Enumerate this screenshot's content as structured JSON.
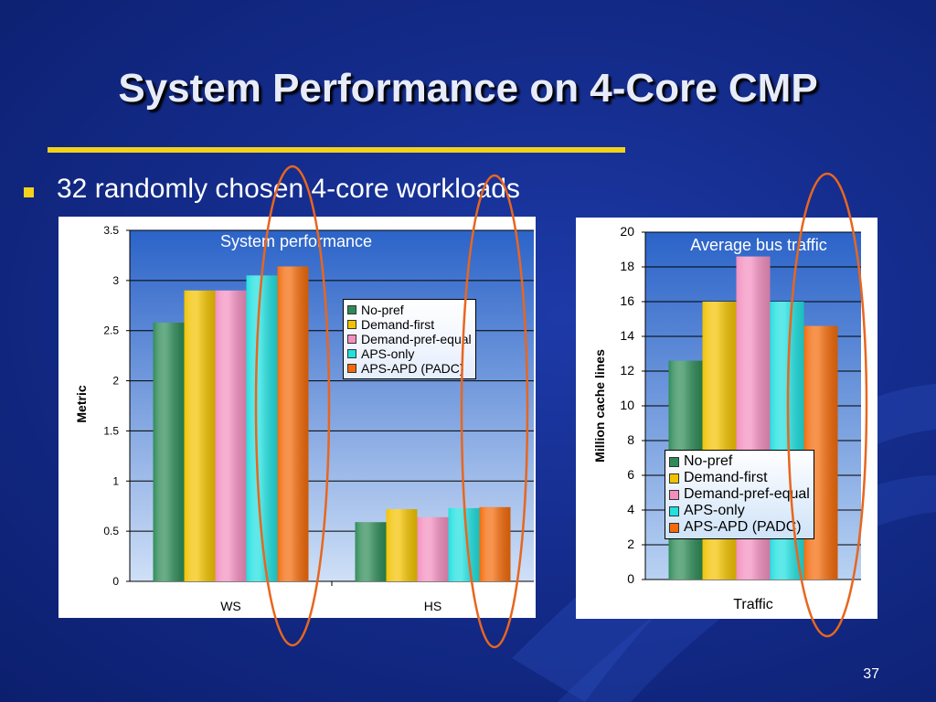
{
  "slide": {
    "title": "System Performance on 4-Core CMP",
    "bullet": "32 randomly chosen 4-core workloads",
    "page_number": "37"
  },
  "colors": {
    "title_rule": "#f3d21c",
    "bullet_marker": "#f3d21c",
    "highlight_ellipse": "#e8661e"
  },
  "legend_items": [
    {
      "label": "No-pref",
      "color": "#2e8b57"
    },
    {
      "label": "Demand-first",
      "color": "#f2c200"
    },
    {
      "label": "Demand-pref-equal",
      "color": "#f28fbf"
    },
    {
      "label": "APS-only",
      "color": "#20e0e0"
    },
    {
      "label": "APS-APD (PADC)",
      "color": "#f26a0a"
    }
  ],
  "chart_data": [
    {
      "type": "bar",
      "title": "System performance",
      "ylabel": "Metric",
      "xlabel": "",
      "categories": [
        "WS",
        "HS"
      ],
      "ylim": [
        0,
        3.5
      ],
      "yticks": [
        "0",
        "0.5",
        "1",
        "1.5",
        "2",
        "2.5",
        "3",
        "3.5"
      ],
      "grid": true,
      "legend_position": "right",
      "series": [
        {
          "name": "No-pref",
          "values": [
            2.58,
            0.59
          ]
        },
        {
          "name": "Demand-first",
          "values": [
            2.9,
            0.72
          ]
        },
        {
          "name": "Demand-pref-equal",
          "values": [
            2.9,
            0.64
          ]
        },
        {
          "name": "APS-only",
          "values": [
            3.05,
            0.73
          ]
        },
        {
          "name": "APS-APD (PADC)",
          "values": [
            3.14,
            0.74
          ]
        }
      ]
    },
    {
      "type": "bar",
      "title": "Average bus traffic",
      "ylabel": "Million cache lines",
      "xlabel": "",
      "categories": [
        "Traffic"
      ],
      "ylim": [
        0,
        20
      ],
      "yticks": [
        "0",
        "2",
        "4",
        "6",
        "8",
        "10",
        "12",
        "14",
        "16",
        "18",
        "20"
      ],
      "grid": true,
      "legend_position": "bottom-right",
      "series": [
        {
          "name": "No-pref",
          "values": [
            12.6
          ]
        },
        {
          "name": "Demand-first",
          "values": [
            16.0
          ]
        },
        {
          "name": "Demand-pref-equal",
          "values": [
            18.6
          ]
        },
        {
          "name": "APS-only",
          "values": [
            16.0
          ]
        },
        {
          "name": "APS-APD (PADC)",
          "values": [
            14.6
          ]
        }
      ]
    }
  ]
}
